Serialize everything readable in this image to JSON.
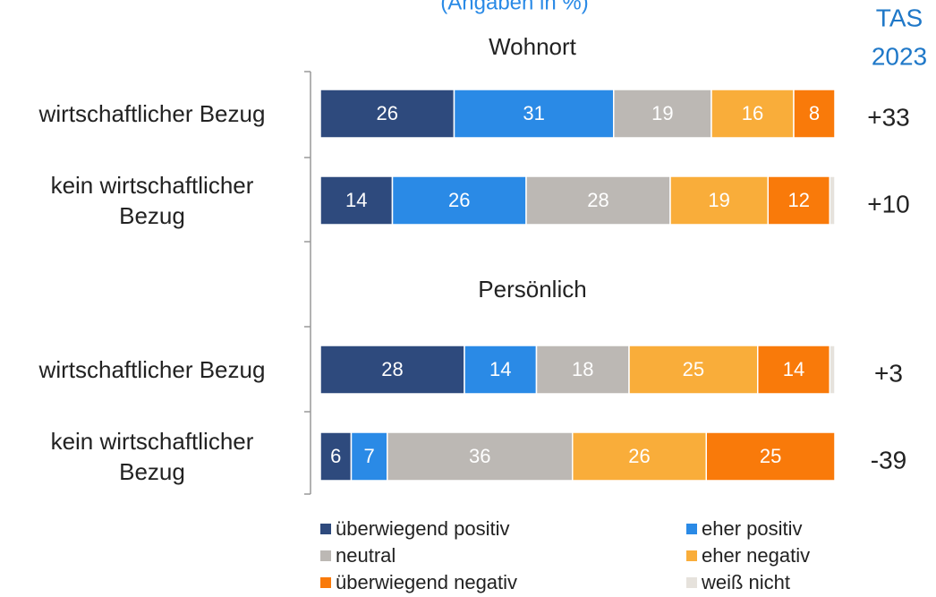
{
  "chart_data": {
    "type": "stacked-bar-horizontal",
    "subtitle": "(Angaben in %)",
    "groups": [
      {
        "name": "Wohnort",
        "categories": [
          "wirtschaftlicher Bezug",
          "kein wirtschaftlicher Bezug"
        ]
      },
      {
        "name": "Persönlich",
        "categories": [
          "wirtschaftlicher Bezug",
          "kein wirtschaftlicher Bezug"
        ]
      }
    ],
    "xlim": [
      0,
      100
    ],
    "series": [
      {
        "name": "überwiegend positiv",
        "color": "#2e4a7d",
        "values": [
          26,
          14,
          28,
          6
        ]
      },
      {
        "name": "eher positiv",
        "color": "#2a8ae6",
        "values": [
          31,
          26,
          14,
          7
        ]
      },
      {
        "name": "neutral",
        "color": "#bcb8b4",
        "values": [
          19,
          28,
          18,
          36
        ]
      },
      {
        "name": "eher negativ",
        "color": "#f9ad3a",
        "values": [
          16,
          19,
          25,
          26
        ]
      },
      {
        "name": "überwiegend negativ",
        "color": "#f97a0a",
        "values": [
          8,
          12,
          14,
          25
        ]
      },
      {
        "name": "weiß nicht",
        "color": "#e6e2dc",
        "values": [
          0,
          1,
          1,
          0
        ]
      }
    ],
    "balance": {
      "title_lines": [
        "TAS",
        "2023"
      ],
      "values": [
        33,
        10,
        3,
        -39
      ],
      "value_labels": [
        "+33",
        "+10",
        "+3",
        "-39"
      ]
    }
  }
}
